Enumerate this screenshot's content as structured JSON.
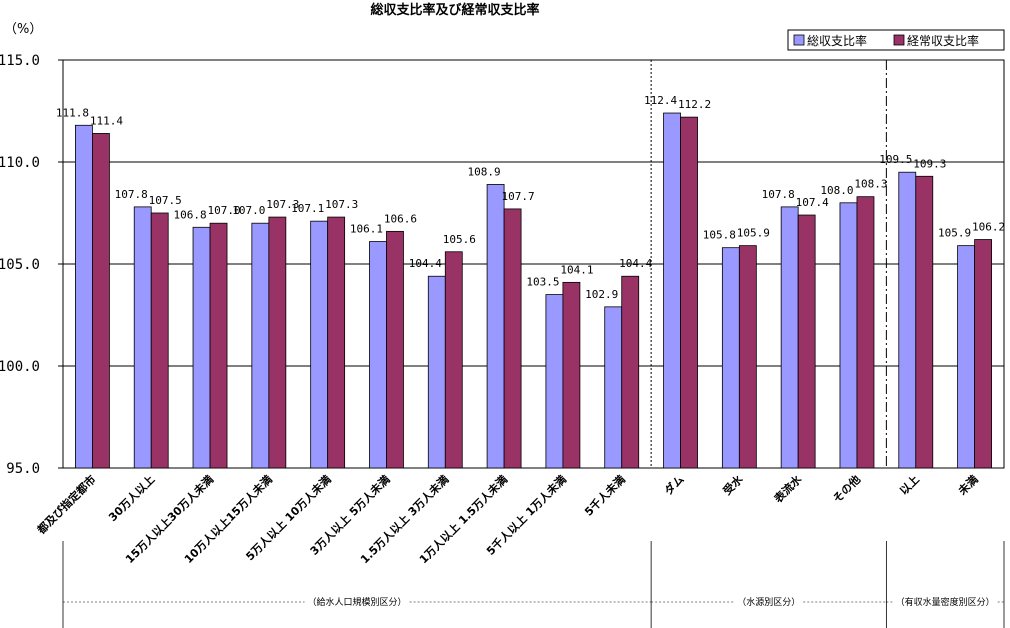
{
  "chart_data": {
    "type": "bar",
    "title": "総収支比率及び経常収支比率",
    "unit_label": "（%）",
    "ylim": [
      95.0,
      115.0
    ],
    "yticks": [
      "95.0",
      "100.0",
      "105.0",
      "110.0",
      "115.0"
    ],
    "grid": true,
    "legend_position": "top-right",
    "categories": [
      "都及び指定都市",
      "30万人以上",
      "15万人以上30万人未満",
      "10万人以上15万人未満",
      "5万人以上 10万人未満",
      "3万人以上 5万人未満",
      "1.5万人以上 3万人未満",
      "1万人以上 1.5万人未満",
      "5千人以上 1万人未満",
      "5千人未満",
      "ダム",
      "受水",
      "表流水",
      "その他",
      "以上",
      "未満"
    ],
    "series": [
      {
        "name": "総収支比率",
        "color": "#9999ff",
        "values": [
          111.8,
          107.8,
          106.8,
          107.0,
          107.1,
          106.1,
          104.4,
          108.9,
          103.5,
          102.9,
          112.4,
          105.8,
          107.8,
          108.0,
          109.5,
          105.9
        ],
        "labels": [
          "111.8",
          "107.8",
          "106.8",
          "107.0",
          "107.1",
          "106.1",
          "104.4",
          "108.9",
          "103.5",
          "102.9",
          "112.4",
          "105.8",
          "107.8",
          "108.0",
          "109.5",
          "105.9"
        ]
      },
      {
        "name": "経常収支比率",
        "color": "#993366",
        "values": [
          111.4,
          107.5,
          107.0,
          107.3,
          107.3,
          106.6,
          105.6,
          107.7,
          104.1,
          104.4,
          112.2,
          105.9,
          107.4,
          108.3,
          109.3,
          106.2
        ],
        "labels": [
          "111.4",
          "107.5",
          "107.0",
          "107.3",
          "107.3",
          "106.6",
          "105.6",
          "107.7",
          "104.1",
          "104.4",
          "112.2",
          "105.9",
          "107.4",
          "108.3",
          "109.3",
          "106.2"
        ]
      }
    ],
    "groups": [
      {
        "label": "（給水人口規模別区分）",
        "from": 0,
        "to": 9
      },
      {
        "label": "（水源別区分）",
        "from": 10,
        "to": 13
      },
      {
        "label": "（有収水量密度別区分）",
        "from": 14,
        "to": 15
      }
    ]
  }
}
